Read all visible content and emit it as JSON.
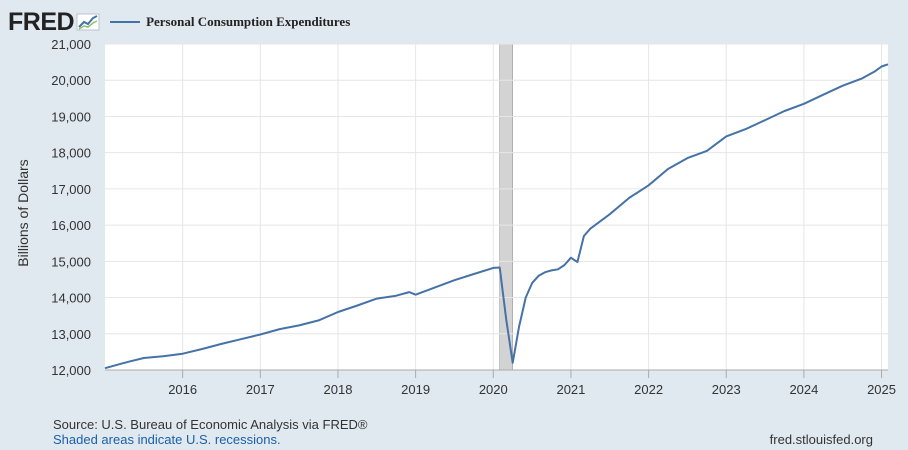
{
  "header": {
    "logo_text": "FRED"
  },
  "footer": {
    "source": "Source: U.S. Bureau of Economic Analysis via FRED®",
    "shaded_note": "Shaded areas indicate U.S. recessions.",
    "site": "fred.stlouisfed.org"
  },
  "colors": {
    "series": "#4572a7",
    "background": "#e1e9f0",
    "plot": "#ffffff",
    "recession": "#d3d3d3"
  },
  "chart_data": {
    "type": "line",
    "title": "",
    "legend": [
      "Personal Consumption Expenditures"
    ],
    "xlabel": "",
    "ylabel": "Billions of Dollars",
    "xlim": [
      2015.0,
      2025.083
    ],
    "ylim": [
      12000,
      21000
    ],
    "xticks": [
      2016,
      2017,
      2018,
      2019,
      2020,
      2021,
      2022,
      2023,
      2024,
      2025
    ],
    "xtick_labels": [
      "2016",
      "2017",
      "2018",
      "2019",
      "2020",
      "2021",
      "2022",
      "2023",
      "2024",
      "2025"
    ],
    "yticks": [
      12000,
      13000,
      14000,
      15000,
      16000,
      17000,
      18000,
      19000,
      20000,
      21000
    ],
    "ytick_labels": [
      "12,000",
      "13,000",
      "14,000",
      "15,000",
      "16,000",
      "17,000",
      "18,000",
      "19,000",
      "20,000",
      "21,000"
    ],
    "recessions": [
      [
        2020.083,
        2020.25
      ]
    ],
    "series": [
      {
        "name": "Personal Consumption Expenditures",
        "x": [
          2015.0,
          2015.25,
          2015.5,
          2015.75,
          2016.0,
          2016.25,
          2016.5,
          2016.75,
          2017.0,
          2017.25,
          2017.5,
          2017.75,
          2018.0,
          2018.25,
          2018.5,
          2018.75,
          2018.917,
          2019.0,
          2019.25,
          2019.5,
          2019.75,
          2020.0,
          2020.083,
          2020.167,
          2020.25,
          2020.333,
          2020.417,
          2020.5,
          2020.583,
          2020.667,
          2020.75,
          2020.833,
          2020.917,
          2021.0,
          2021.083,
          2021.167,
          2021.25,
          2021.5,
          2021.75,
          2022.0,
          2022.25,
          2022.5,
          2022.75,
          2023.0,
          2023.25,
          2023.5,
          2023.75,
          2024.0,
          2024.25,
          2024.5,
          2024.75,
          2024.917,
          2025.0,
          2025.083
        ],
        "y": [
          12050,
          12200,
          12330,
          12380,
          12450,
          12580,
          12720,
          12850,
          12980,
          13130,
          13230,
          13370,
          13600,
          13780,
          13970,
          14050,
          14150,
          14080,
          14280,
          14480,
          14650,
          14820,
          14830,
          13400,
          12200,
          13200,
          14000,
          14400,
          14600,
          14700,
          14750,
          14780,
          14900,
          15100,
          14980,
          15700,
          15900,
          16300,
          16750,
          17100,
          17550,
          17850,
          18050,
          18450,
          18650,
          18900,
          19150,
          19350,
          19600,
          19850,
          20050,
          20250,
          20380,
          20440
        ]
      }
    ]
  }
}
